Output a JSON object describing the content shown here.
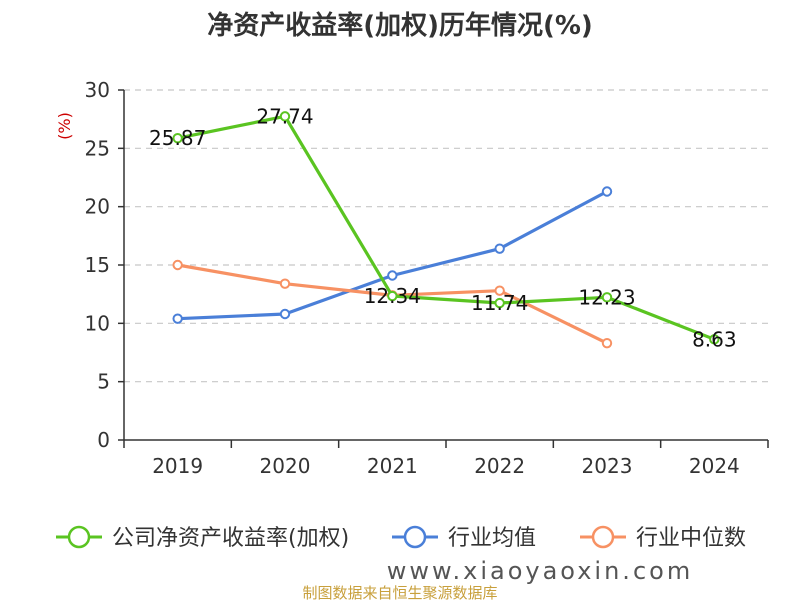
{
  "chart_data": {
    "type": "line",
    "title": "净资产收益率(加权)历年情况(%)",
    "ylabel": "(%)",
    "xlabel": "",
    "categories": [
      "2019",
      "2020",
      "2021",
      "2022",
      "2023",
      "2024"
    ],
    "ylim": [
      0,
      30
    ],
    "yticks": [
      0,
      5,
      10,
      15,
      20,
      25,
      30
    ],
    "grid": true,
    "legend_position": "bottom",
    "series": [
      {
        "name": "公司净资产收益率(加权)",
        "color": "#5ac421",
        "values": [
          25.87,
          27.74,
          12.34,
          11.74,
          12.23,
          8.63
        ],
        "labels": [
          "25.87",
          "27.74",
          "12.34",
          "11.74",
          "12.23",
          "8.63"
        ]
      },
      {
        "name": "行业均值",
        "color": "#4a7fd8",
        "values": [
          10.4,
          10.8,
          14.1,
          16.4,
          21.3,
          null
        ]
      },
      {
        "name": "行业中位数",
        "color": "#f79163",
        "values": [
          15.0,
          13.4,
          12.4,
          12.8,
          8.3,
          null
        ]
      }
    ]
  },
  "source": "制图数据来自恒生聚源数据库",
  "source_color": "#c8a03c",
  "ylabel_color": "#cc0000",
  "watermark": "www.xiaoyaoxin.com"
}
